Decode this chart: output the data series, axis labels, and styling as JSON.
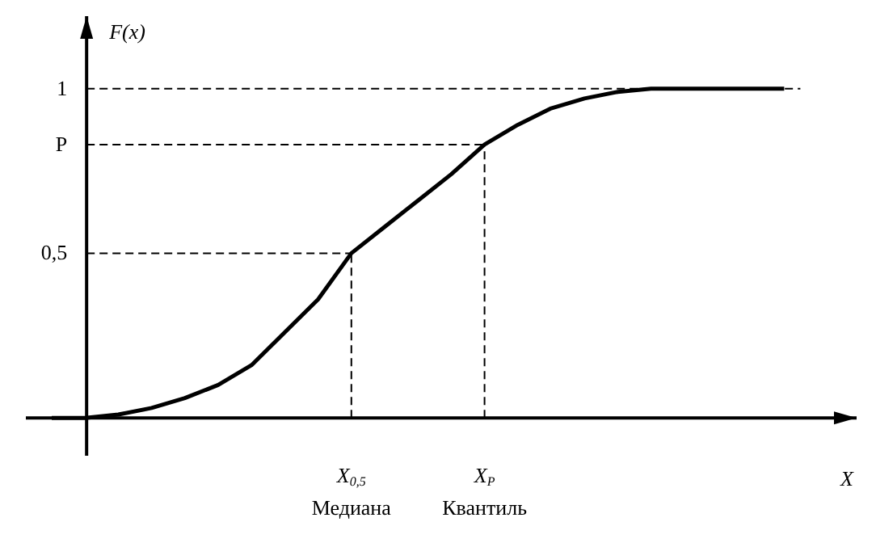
{
  "chart_data": {
    "type": "line",
    "xlabel": "X",
    "ylabel": "F(x)",
    "categories": [
      null,
      null,
      null,
      null,
      null,
      null,
      null,
      null,
      null,
      "X$_{0,5}$\nМедиана",
      null,
      null,
      null,
      "X$_{P}$\nКвантиль",
      null,
      null,
      null,
      null,
      null,
      null,
      null,
      null,
      null,
      null
    ],
    "series": [
      {
        "color": "#000000",
        "values": [
          0,
          0,
          0.01,
          0.03,
          0.06,
          0.1,
          0.16,
          0.26,
          0.36,
          0.5,
          0.58,
          0.66,
          0.74,
          0.83,
          0.89,
          0.94,
          0.97,
          0.99,
          1,
          1,
          1,
          1,
          1,
          null
        ]
      }
    ],
    "ylim": [
      -0.115,
      1.22
    ],
    "yticks": [
      {
        "value": 0.5,
        "label": "0,5"
      },
      {
        "value": 0.83,
        "label": "P"
      },
      {
        "value": 1,
        "label": "1"
      }
    ],
    "ref_lines": [
      {
        "axis": "y",
        "value": 1,
        "line_style": "dashed"
      },
      {
        "axis": "y",
        "value": 0.83,
        "line_style": "dashed"
      },
      {
        "axis": "y",
        "value": 0.5,
        "line_style": "dashed"
      },
      {
        "axis": "x",
        "value": "X$_{0,5}$\nМедиана",
        "line_style": "dashed"
      },
      {
        "axis": "x",
        "value": "X$_{P}$\nКвантиль",
        "line_style": "dashed"
      }
    ],
    "grid": false,
    "marker": "none",
    "line_style": "solid"
  }
}
